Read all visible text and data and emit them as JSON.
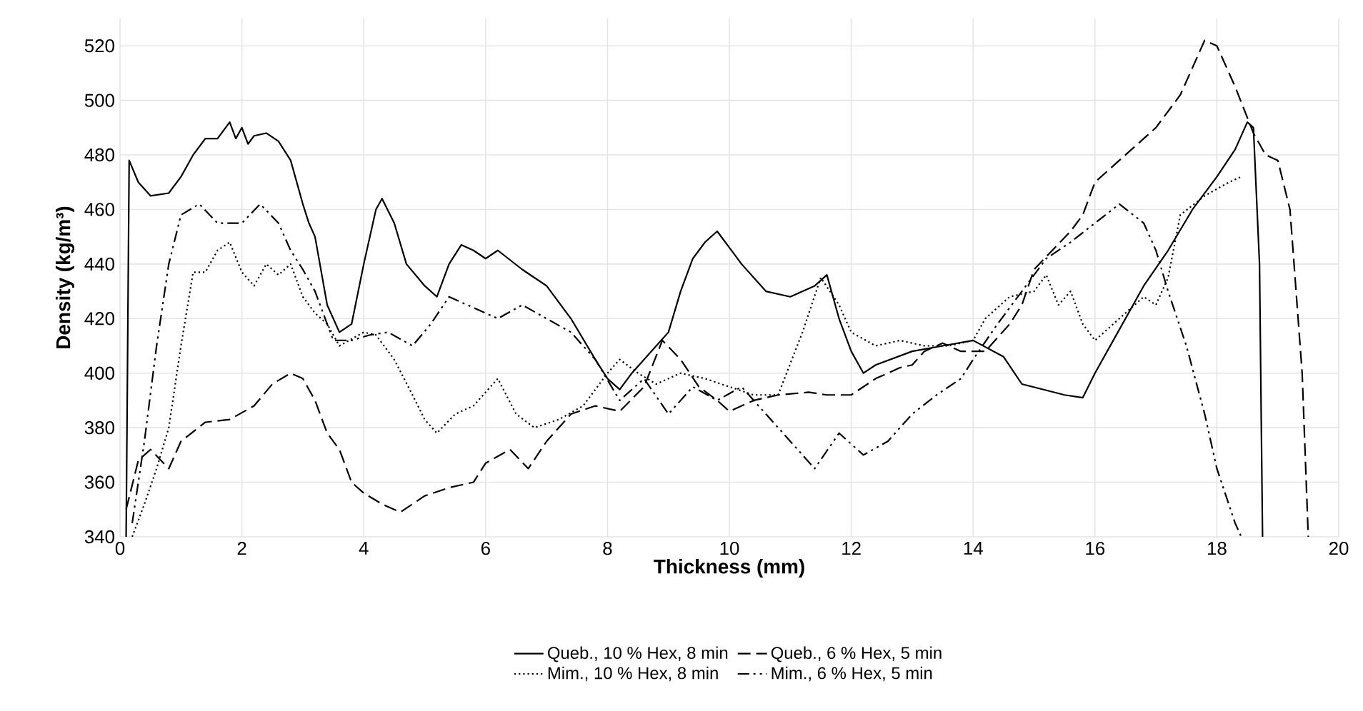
{
  "chart_data": {
    "type": "line",
    "xlabel": "Thickness (mm)",
    "ylabel": "Density (kg/m³)",
    "xlim": [
      0,
      20
    ],
    "ylim": [
      340,
      530
    ],
    "xticks": [
      0,
      2,
      4,
      6,
      8,
      10,
      12,
      14,
      16,
      18,
      20
    ],
    "yticks": [
      340,
      360,
      380,
      400,
      420,
      440,
      460,
      480,
      500,
      520
    ],
    "grid": true,
    "legend": "bottom",
    "marker": "none",
    "series": [
      {
        "name": "Queb., 10 % Hex, 8 min",
        "color": "#000000",
        "line_style": "solid",
        "x": [
          0.1,
          0.15,
          0.3,
          0.5,
          0.8,
          1.0,
          1.2,
          1.4,
          1.6,
          1.8,
          1.9,
          2.0,
          2.1,
          2.2,
          2.4,
          2.6,
          2.8,
          3.0,
          3.1,
          3.2,
          3.4,
          3.6,
          3.8,
          4.0,
          4.2,
          4.3,
          4.5,
          4.7,
          5.0,
          5.2,
          5.4,
          5.6,
          5.8,
          6.0,
          6.2,
          6.6,
          7.0,
          7.4,
          7.8,
          8.0,
          8.2,
          8.4,
          8.8,
          9.0,
          9.2,
          9.4,
          9.6,
          9.8,
          10.0,
          10.2,
          10.6,
          11.0,
          11.4,
          11.6,
          11.8,
          12.0,
          12.2,
          12.4,
          13.0,
          13.5,
          14.0,
          14.5,
          14.8,
          15.5,
          15.8,
          16.0,
          16.3,
          16.8,
          17.2,
          17.6,
          18.0,
          18.3,
          18.5,
          18.6,
          18.7,
          18.75
        ],
        "values": [
          340,
          478,
          470,
          465,
          466,
          472,
          480,
          486,
          486,
          492,
          486,
          490,
          484,
          487,
          488,
          485,
          478,
          462,
          455,
          450,
          425,
          415,
          418,
          440,
          460,
          464,
          455,
          440,
          432,
          428,
          440,
          447,
          445,
          442,
          445,
          438,
          432,
          420,
          405,
          398,
          394,
          400,
          410,
          415,
          430,
          442,
          448,
          452,
          446,
          440,
          430,
          428,
          432,
          436,
          420,
          408,
          400,
          403,
          408,
          410,
          412,
          406,
          396,
          392,
          391,
          400,
          412,
          432,
          445,
          460,
          472,
          482,
          492,
          490,
          440,
          340
        ]
      },
      {
        "name": "Queb., 6 % Hex, 5 min",
        "color": "#000000",
        "line_style": "dashed",
        "x": [
          0.1,
          0.3,
          0.5,
          0.8,
          1.0,
          1.4,
          1.8,
          2.2,
          2.5,
          2.8,
          3.0,
          3.2,
          3.4,
          3.6,
          3.8,
          4.0,
          4.3,
          4.6,
          5.0,
          5.4,
          5.8,
          6.0,
          6.4,
          6.7,
          7.0,
          7.4,
          7.8,
          8.2,
          8.6,
          8.9,
          9.2,
          9.5,
          9.8,
          10.0,
          10.4,
          10.8,
          11.3,
          11.6,
          12.0,
          12.4,
          12.8,
          13.0,
          13.2,
          13.5,
          13.8,
          14.2,
          14.6,
          14.8,
          15.0,
          15.3,
          15.6,
          15.8,
          16.0,
          16.2,
          16.6,
          17.0,
          17.4,
          17.8,
          18.0,
          18.3,
          18.6,
          18.8,
          19.0,
          19.2,
          19.4,
          19.5
        ],
        "values": [
          350,
          368,
          372,
          365,
          375,
          382,
          383,
          388,
          396,
          400,
          398,
          390,
          378,
          372,
          360,
          356,
          352,
          349,
          355,
          358,
          360,
          367,
          372,
          365,
          375,
          385,
          388,
          386,
          395,
          412,
          405,
          395,
          390,
          386,
          390,
          392,
          393,
          392,
          392,
          398,
          402,
          403,
          408,
          411,
          408,
          408,
          418,
          425,
          438,
          445,
          452,
          458,
          470,
          474,
          482,
          490,
          502,
          522,
          520,
          505,
          488,
          480,
          478,
          460,
          400,
          340
        ]
      },
      {
        "name": "Mim., 10 % Hex, 8 min",
        "color": "#000000",
        "line_style": "dotted",
        "x": [
          0.2,
          0.4,
          0.6,
          0.8,
          1.0,
          1.2,
          1.4,
          1.6,
          1.8,
          2.0,
          2.2,
          2.4,
          2.6,
          2.8,
          3.0,
          3.2,
          3.4,
          3.6,
          4.0,
          4.2,
          4.5,
          4.8,
          5.0,
          5.2,
          5.5,
          5.8,
          6.0,
          6.2,
          6.5,
          6.8,
          7.2,
          7.6,
          8.0,
          8.2,
          8.5,
          8.8,
          9.2,
          9.6,
          10.0,
          10.4,
          10.8,
          11.2,
          11.5,
          11.8,
          12.0,
          12.4,
          12.8,
          13.2,
          13.6,
          14.0,
          14.2,
          14.6,
          15.0,
          15.2,
          15.4,
          15.6,
          15.8,
          16.0,
          16.4,
          16.8,
          17.0,
          17.2,
          17.4,
          17.8,
          18.2,
          18.4
        ],
        "values": [
          340,
          352,
          365,
          380,
          410,
          437,
          437,
          445,
          448,
          437,
          432,
          440,
          436,
          440,
          428,
          422,
          418,
          410,
          415,
          414,
          405,
          392,
          383,
          378,
          385,
          388,
          393,
          398,
          385,
          380,
          383,
          388,
          400,
          405,
          400,
          396,
          400,
          398,
          395,
          392,
          392,
          415,
          435,
          425,
          415,
          410,
          412,
          410,
          410,
          412,
          420,
          428,
          430,
          436,
          425,
          430,
          418,
          412,
          420,
          428,
          425,
          435,
          458,
          465,
          470,
          472
        ]
      },
      {
        "name": "Mim., 6 % Hex, 5 min",
        "color": "#000000",
        "line_style": "dashdot",
        "x": [
          0.2,
          0.4,
          0.6,
          0.8,
          1.0,
          1.3,
          1.6,
          2.0,
          2.3,
          2.6,
          2.8,
          3.0,
          3.2,
          3.5,
          3.8,
          4.1,
          4.4,
          4.8,
          5.1,
          5.4,
          5.8,
          6.2,
          6.6,
          7.0,
          7.4,
          7.8,
          8.2,
          8.6,
          9.0,
          9.4,
          9.8,
          10.2,
          10.6,
          11.0,
          11.4,
          11.8,
          12.2,
          12.6,
          13.0,
          13.4,
          13.8,
          14.0,
          14.4,
          14.8,
          15.2,
          15.6,
          16.0,
          16.4,
          16.8,
          17.0,
          17.2,
          17.5,
          17.8,
          18.0,
          18.3,
          18.4
        ],
        "values": [
          345,
          375,
          410,
          440,
          458,
          462,
          455,
          455,
          462,
          455,
          445,
          438,
          430,
          412,
          412,
          414,
          415,
          410,
          418,
          428,
          424,
          420,
          425,
          420,
          415,
          405,
          390,
          398,
          385,
          395,
          390,
          395,
          385,
          375,
          365,
          378,
          370,
          375,
          385,
          392,
          398,
          405,
          418,
          430,
          442,
          448,
          455,
          462,
          455,
          445,
          430,
          410,
          385,
          365,
          345,
          340
        ]
      }
    ]
  }
}
